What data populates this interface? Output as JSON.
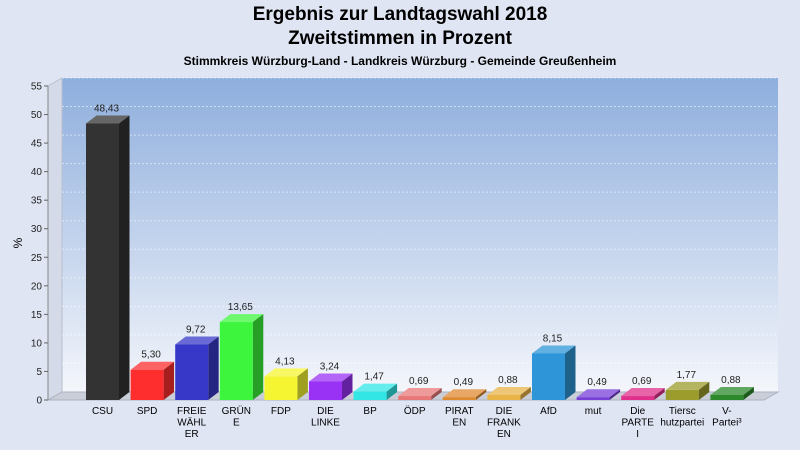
{
  "header": {
    "title_line1": "Ergebnis zur Landtagswahl 2018",
    "title_line2": "Zweitstimmen in Prozent",
    "subtitle": "Stimmkreis Würzburg-Land - Landkreis Würzburg - Gemeinde Greußenheim"
  },
  "chart_data": {
    "type": "bar",
    "title": "Ergebnis zur Landtagswahl 2018 Zweitstimmen in Prozent",
    "subtitle": "Stimmkreis Würzburg-Land - Landkreis Würzburg - Gemeinde Greußenheim",
    "ylabel": "%",
    "ylim": [
      0,
      55
    ],
    "yticks": [
      0,
      5,
      10,
      15,
      20,
      25,
      30,
      35,
      40,
      45,
      50,
      55
    ],
    "grid": true,
    "categories": [
      [
        "CSU"
      ],
      [
        "SPD"
      ],
      [
        "FREIE",
        "WÄHL",
        "ER"
      ],
      [
        "GRÜN",
        "E"
      ],
      [
        "FDP"
      ],
      [
        "DIE",
        "LINKE"
      ],
      [
        "BP"
      ],
      [
        "ÖDP"
      ],
      [
        "PIRAT",
        "EN"
      ],
      [
        "DIE",
        "FRANK",
        "EN"
      ],
      [
        "AfD"
      ],
      [
        "mut"
      ],
      [
        "Die",
        "PARTE",
        "I"
      ],
      [
        "Tiersc",
        "hutzpartei"
      ],
      [
        "V-",
        "Partei³"
      ]
    ],
    "values": [
      48.43,
      5.3,
      9.72,
      13.65,
      4.13,
      3.24,
      1.47,
      0.69,
      0.49,
      0.88,
      8.15,
      0.49,
      0.69,
      1.77,
      0.88
    ],
    "value_labels": [
      "48,43",
      "5,30",
      "9,72",
      "13,65",
      "4,13",
      "3,24",
      "1,47",
      "0,69",
      "0,49",
      "0,88",
      "8,15",
      "0,49",
      "0,69",
      "1,77",
      "0,88"
    ],
    "colors": [
      "#333333",
      "#ff2e2e",
      "#3838c8",
      "#3cf53c",
      "#f5f532",
      "#9a32f5",
      "#32e6e6",
      "#e87878",
      "#e08a30",
      "#e8b448",
      "#2e96d8",
      "#7840d8",
      "#e0308c",
      "#9c9c2c",
      "#2c8a2c"
    ]
  }
}
